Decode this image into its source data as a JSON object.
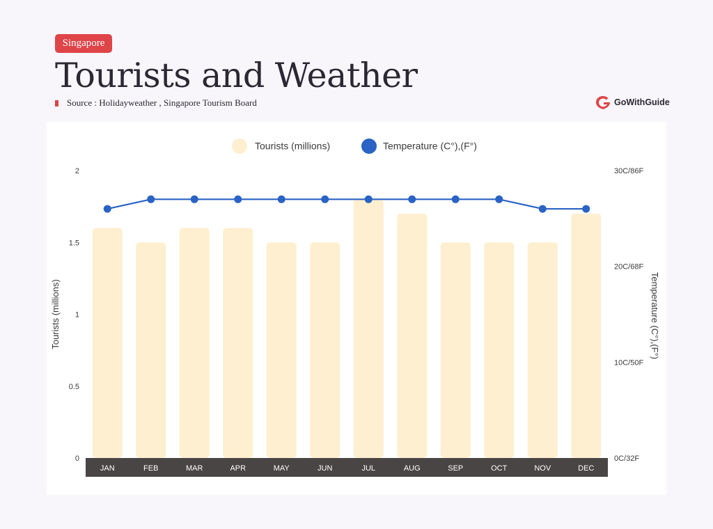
{
  "header": {
    "badge": "Singapore",
    "title": "Tourists and Weather",
    "source": "Source : Holidayweather , Singapore Tourism Board",
    "logo_text": "GoWithGuide",
    "logo_icon": "gowithguide-logo-icon"
  },
  "colors": {
    "background": "#f8f6fa",
    "badge": "#de4448",
    "bars": "#fdefcf",
    "line": "#2a63c4",
    "axis_band": "#4a4545",
    "title": "#2b2833"
  },
  "chart_data": {
    "type": "bar",
    "categories": [
      "JAN",
      "FEB",
      "MAR",
      "APR",
      "MAY",
      "JUN",
      "JUL",
      "AUG",
      "SEP",
      "OCT",
      "NOV",
      "DEC"
    ],
    "legend": {
      "placement": "top-center",
      "items": [
        "Tourists (millions)",
        "Temperature (C°),(F°)"
      ]
    },
    "series": [
      {
        "name": "Tourists (millions)",
        "type": "bar",
        "axis": "left",
        "values": [
          1.6,
          1.5,
          1.6,
          1.6,
          1.5,
          1.5,
          1.8,
          1.7,
          1.5,
          1.5,
          1.5,
          1.7
        ]
      },
      {
        "name": "Temperature (C°),(F°)",
        "type": "line",
        "axis": "right",
        "values": [
          26,
          27,
          27,
          27,
          27,
          27,
          27,
          27,
          27,
          27,
          26,
          26
        ]
      }
    ],
    "ylabel": "Tourists (millions)",
    "ylim": [
      0,
      2
    ],
    "yticks": [
      "0",
      "0.5",
      "1",
      "1.5",
      "2"
    ],
    "y2label": "Temperature (C°),(F°)",
    "y2lim": [
      0,
      30
    ],
    "y2ticks": [
      "0C/32F",
      "10C/50F",
      "20C/68F",
      "30C/86F"
    ],
    "grid": false
  }
}
